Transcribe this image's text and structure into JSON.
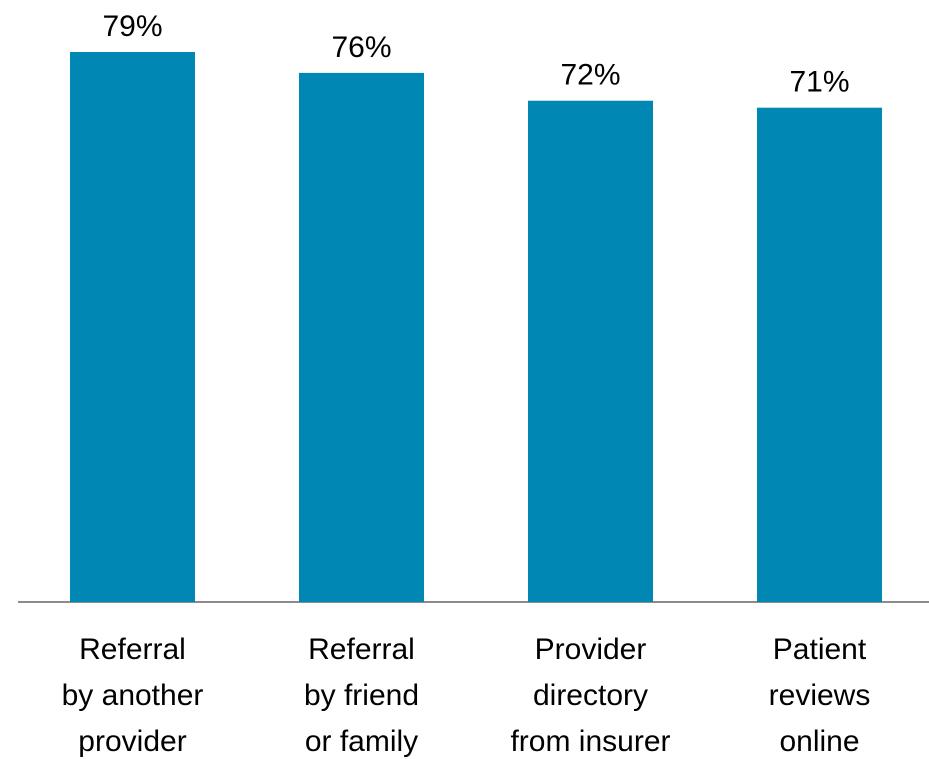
{
  "chart_data": {
    "type": "bar",
    "categories": [
      [
        "Referral",
        "by another",
        "provider"
      ],
      [
        "Referral",
        "by friend",
        "or family"
      ],
      [
        "Provider",
        "directory",
        "from insurer"
      ],
      [
        "Patient",
        "reviews",
        "online"
      ]
    ],
    "values": [
      79,
      76,
      72,
      71
    ],
    "value_labels": [
      "79%",
      "76%",
      "72%",
      "71%"
    ],
    "color": "#0087b3"
  }
}
